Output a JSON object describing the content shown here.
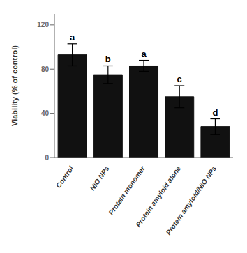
{
  "chart_data": {
    "type": "bar",
    "categories": [
      "Control",
      "NiO NPs",
      "Protein monomer",
      "Protein amyloid alone",
      "Protein amyloid/NiO NPs"
    ],
    "values": [
      93,
      75,
      83,
      55,
      28
    ],
    "errors": [
      10,
      8,
      5,
      10,
      7
    ],
    "annotations": [
      "a",
      "b",
      "a",
      "c",
      "d"
    ],
    "color": "#111111",
    "ylabel": "Viability (% of control)",
    "ylim": [
      0,
      130
    ],
    "yticks": [
      0,
      40,
      80,
      120
    ],
    "grid": false
  }
}
